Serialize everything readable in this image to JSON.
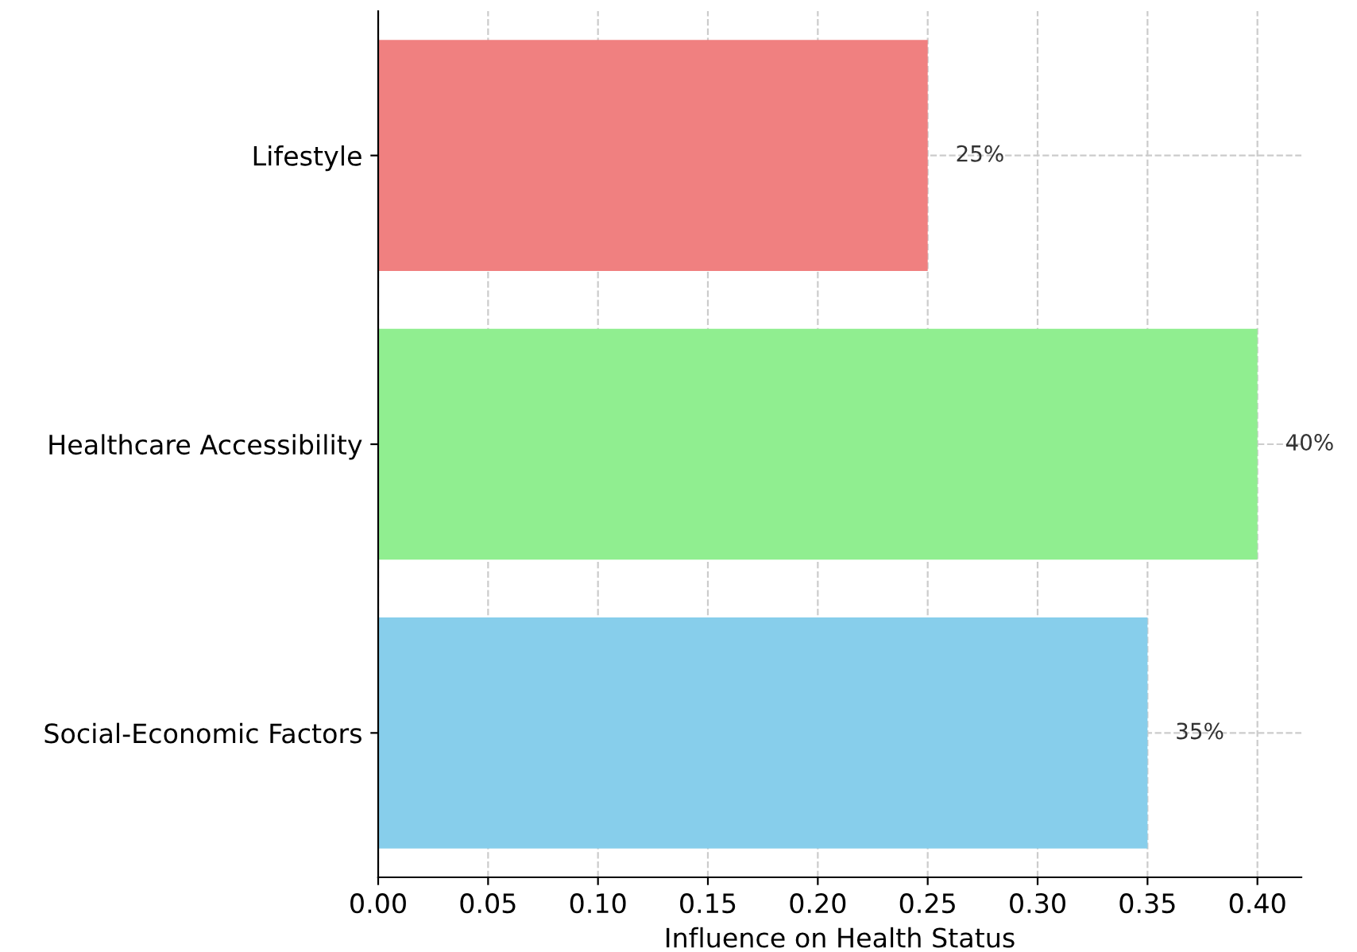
{
  "chart_data": {
    "type": "bar",
    "orientation": "horizontal",
    "xlabel": "Influence on Health Status",
    "categories": [
      "Lifestyle",
      "Healthcare Accessibility",
      "Social-Economic Factors"
    ],
    "values": [
      0.25,
      0.4,
      0.35
    ],
    "colors": [
      "#f08080",
      "#90ee90",
      "#87ceeb"
    ],
    "value_labels": [
      "25%",
      "40%",
      "35%"
    ],
    "xlim": [
      0,
      0.42
    ],
    "xticks": [
      {
        "value": 0,
        "label": "0.00"
      },
      0.05,
      {
        "value": 0.1,
        "label": "0.10"
      },
      0.15,
      {
        "value": 0.2,
        "label": "0.20"
      },
      0.25,
      {
        "value": 0.3,
        "label": "0.30"
      },
      0.35,
      {
        "value": 0.4,
        "label": "0.40"
      }
    ],
    "grid": true,
    "line_style": "dashed"
  }
}
